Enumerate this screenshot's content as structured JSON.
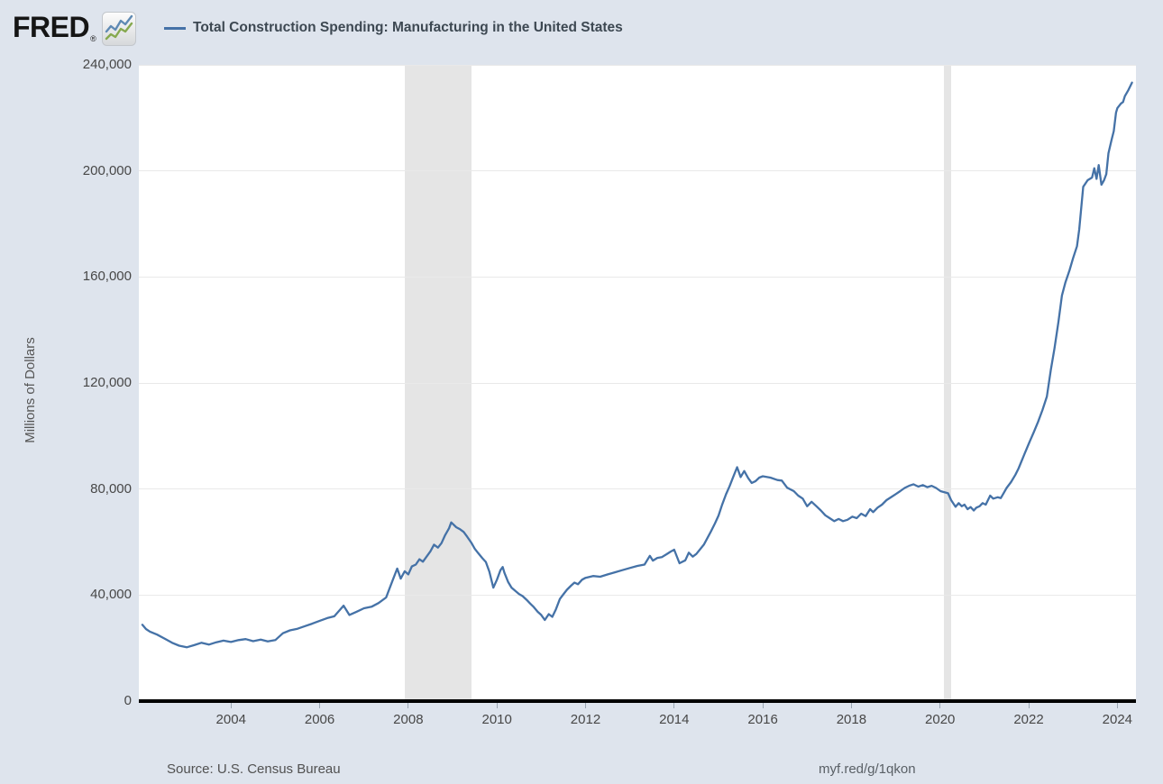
{
  "header": {
    "logo_text": "FRED",
    "registered_mark": "®",
    "legend_label": "Total Construction Spending: Manufacturing in the United States"
  },
  "y_axis": {
    "title": "Millions of Dollars"
  },
  "footer": {
    "source": "Source: U.S. Census Bureau",
    "link": "myf.red/g/1qkon"
  },
  "colors": {
    "background": "#dee4ed",
    "plot_background": "#ffffff",
    "line": "#4572a7",
    "recession_band": "#e5e5e5",
    "gridline": "#e9e9e9",
    "axis": "#000000",
    "tick_text": "#474747"
  },
  "chart_data": {
    "type": "line",
    "title": "Total Construction Spending: Manufacturing in the United States",
    "xlabel": "",
    "ylabel": "Millions of Dollars",
    "legend_position": "top",
    "grid": true,
    "xlim": [
      2001.92,
      2024.42
    ],
    "ylim": [
      0,
      240000
    ],
    "x_ticks": [
      2004,
      2006,
      2008,
      2010,
      2012,
      2014,
      2016,
      2018,
      2020,
      2022,
      2024
    ],
    "y_ticks": [
      0,
      40000,
      80000,
      120000,
      160000,
      200000,
      240000
    ],
    "recession_bands": [
      [
        2007.92,
        2009.42
      ],
      [
        2020.08,
        2020.25
      ]
    ],
    "series": [
      {
        "name": "Total Construction Spending: Manufacturing in the United States",
        "x": [
          2002.0,
          2002.08,
          2002.17,
          2002.33,
          2002.5,
          2002.67,
          2002.83,
          2003.0,
          2003.17,
          2003.33,
          2003.5,
          2003.67,
          2003.83,
          2004.0,
          2004.17,
          2004.33,
          2004.5,
          2004.67,
          2004.83,
          2005.0,
          2005.17,
          2005.33,
          2005.5,
          2005.67,
          2005.83,
          2006.0,
          2006.17,
          2006.33,
          2006.54,
          2006.67,
          2006.83,
          2007.0,
          2007.17,
          2007.33,
          2007.5,
          2007.58,
          2007.67,
          2007.75,
          2007.83,
          2007.92,
          2008.0,
          2008.08,
          2008.17,
          2008.25,
          2008.33,
          2008.5,
          2008.58,
          2008.67,
          2008.75,
          2008.83,
          2008.92,
          2008.97,
          2009.08,
          2009.17,
          2009.25,
          2009.33,
          2009.42,
          2009.5,
          2009.58,
          2009.67,
          2009.75,
          2009.83,
          2009.92,
          2010.0,
          2010.08,
          2010.13,
          2010.17,
          2010.25,
          2010.33,
          2010.42,
          2010.5,
          2010.58,
          2010.67,
          2010.75,
          2010.83,
          2010.92,
          2011.0,
          2011.08,
          2011.17,
          2011.25,
          2011.33,
          2011.42,
          2011.5,
          2011.58,
          2011.67,
          2011.75,
          2011.83,
          2011.92,
          2012.0,
          2012.17,
          2012.33,
          2012.5,
          2012.67,
          2012.83,
          2013.0,
          2013.17,
          2013.33,
          2013.45,
          2013.52,
          2013.62,
          2013.72,
          2013.83,
          2013.92,
          2014.0,
          2014.12,
          2014.25,
          2014.33,
          2014.42,
          2014.5,
          2014.67,
          2014.83,
          2014.92,
          2015.0,
          2015.08,
          2015.17,
          2015.25,
          2015.33,
          2015.42,
          2015.5,
          2015.58,
          2015.67,
          2015.75,
          2015.83,
          2015.92,
          2016.0,
          2016.17,
          2016.33,
          2016.43,
          2016.55,
          2016.7,
          2016.8,
          2016.9,
          2017.0,
          2017.1,
          2017.21,
          2017.31,
          2017.41,
          2017.51,
          2017.61,
          2017.71,
          2017.81,
          2017.91,
          2018.02,
          2018.12,
          2018.22,
          2018.32,
          2018.42,
          2018.49,
          2018.59,
          2018.69,
          2018.79,
          2018.9,
          2019.0,
          2019.1,
          2019.2,
          2019.3,
          2019.4,
          2019.51,
          2019.61,
          2019.71,
          2019.81,
          2019.91,
          2020.01,
          2020.18,
          2020.25,
          2020.35,
          2020.42,
          2020.49,
          2020.55,
          2020.62,
          2020.69,
          2020.76,
          2020.82,
          2020.89,
          2020.96,
          2021.03,
          2021.13,
          2021.2,
          2021.3,
          2021.37,
          2021.44,
          2021.5,
          2021.6,
          2021.7,
          2021.77,
          2021.84,
          2021.91,
          2022.01,
          2022.11,
          2022.21,
          2022.31,
          2022.41,
          2022.5,
          2022.58,
          2022.67,
          2022.75,
          2022.83,
          2022.92,
          2023.0,
          2023.09,
          2023.14,
          2023.23,
          2023.33,
          2023.43,
          2023.48,
          2023.53,
          2023.58,
          2023.64,
          2023.7,
          2023.75,
          2023.8,
          2023.87,
          2023.92,
          2023.97,
          2024.0,
          2024.08,
          2024.13,
          2024.17,
          2024.25,
          2024.33
        ],
        "y": [
          28800,
          27200,
          26200,
          25100,
          23600,
          22000,
          20900,
          20300,
          21100,
          22000,
          21300,
          22200,
          22800,
          22300,
          23000,
          23400,
          22600,
          23200,
          22500,
          23000,
          25600,
          26700,
          27300,
          28300,
          29200,
          30300,
          31300,
          32000,
          36000,
          32500,
          33700,
          35000,
          35600,
          37000,
          39100,
          42600,
          46500,
          50000,
          46200,
          49000,
          47800,
          50800,
          51500,
          53500,
          52600,
          56500,
          59000,
          57900,
          59600,
          62600,
          65200,
          67400,
          65600,
          64800,
          63800,
          62000,
          59800,
          57500,
          55800,
          53900,
          52500,
          48800,
          42800,
          45800,
          49400,
          50600,
          48400,
          45000,
          42800,
          41500,
          40400,
          39600,
          38200,
          36800,
          35500,
          33700,
          32500,
          30600,
          32800,
          31800,
          34600,
          38500,
          40300,
          42000,
          43500,
          44700,
          44100,
          45800,
          46500,
          47200,
          46900,
          47800,
          48600,
          49400,
          50200,
          51000,
          51500,
          54800,
          53000,
          54000,
          54300,
          55400,
          56400,
          57100,
          52000,
          53100,
          56000,
          54500,
          55500,
          59000,
          64000,
          67000,
          70000,
          74000,
          78000,
          81000,
          84500,
          88200,
          84500,
          86800,
          84100,
          82300,
          82900,
          84300,
          84800,
          84300,
          83400,
          83200,
          80500,
          79200,
          77500,
          76400,
          73500,
          75200,
          73500,
          71900,
          70100,
          69000,
          67900,
          68700,
          67900,
          68400,
          69600,
          69000,
          70700,
          69800,
          72400,
          71300,
          73000,
          74100,
          75800,
          77000,
          78100,
          79200,
          80400,
          81200,
          81800,
          80900,
          81500,
          80700,
          81200,
          80400,
          79200,
          78400,
          75800,
          73300,
          74700,
          73500,
          74100,
          72400,
          73200,
          71900,
          73000,
          73500,
          74700,
          74100,
          77500,
          76400,
          76900,
          76600,
          78600,
          80400,
          82600,
          85400,
          87700,
          90600,
          93400,
          97400,
          101300,
          105300,
          109800,
          114900,
          125000,
          133000,
          143000,
          153000,
          158000,
          162500,
          167000,
          171600,
          178000,
          194000,
          196500,
          197500,
          201000,
          197000,
          202200,
          194800,
          196500,
          198800,
          206700,
          211800,
          215000,
          222000,
          223700,
          225400,
          226000,
          228200,
          230500,
          233300
        ]
      }
    ]
  }
}
